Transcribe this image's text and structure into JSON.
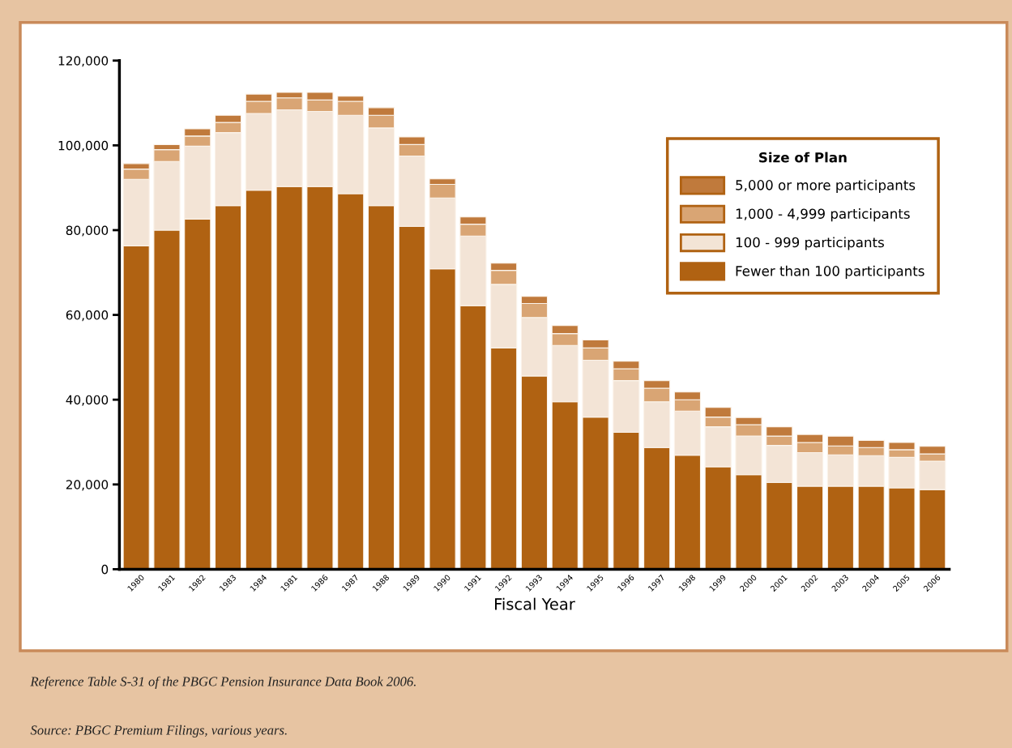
{
  "chart_data": {
    "type": "bar",
    "stacked": true,
    "xlabel": "Fiscal Year",
    "legend_title": "Size of Plan",
    "legend": "top right",
    "grid": false,
    "categories": [
      "1980",
      "1981",
      "1982",
      "1983",
      "1984",
      "1981",
      "1986",
      "1987",
      "1988",
      "1989",
      "1990",
      "1991",
      "1992",
      "1993",
      "1994",
      "1995",
      "1996",
      "1997",
      "1998",
      "1999",
      "2000",
      "2001",
      "2002",
      "2003",
      "2004",
      "2005",
      "2006"
    ],
    "series": [
      {
        "name": "Fewer than 100 participants",
        "color": "#b06212",
        "values": [
          76300,
          80000,
          82600,
          85800,
          89400,
          90300,
          90300,
          88600,
          85800,
          80900,
          70900,
          62200,
          52200,
          45600,
          39500,
          35900,
          32300,
          28700,
          26900,
          24200,
          22300,
          20500,
          19600,
          19600,
          19600,
          19200,
          18800
        ]
      },
      {
        "name": "100 - 999 participants",
        "color": "#f3e4d6",
        "values": [
          15700,
          16200,
          17200,
          17200,
          18100,
          18100,
          17700,
          18500,
          18300,
          16600,
          16700,
          16400,
          15000,
          13800,
          13300,
          13400,
          12200,
          10800,
          10400,
          9400,
          9100,
          8700,
          7900,
          7400,
          7200,
          7200,
          6700
        ]
      },
      {
        "name": "1,000 - 4,999 participants",
        "color": "#d9a574",
        "values": [
          2400,
          2800,
          2400,
          2400,
          2900,
          2800,
          2700,
          3300,
          3000,
          2700,
          3200,
          2800,
          3300,
          3300,
          2800,
          2900,
          2800,
          3200,
          2700,
          2300,
          2700,
          2200,
          2400,
          2100,
          1900,
          1800,
          1700
        ]
      },
      {
        "name": "5,000 or more participants",
        "color": "#c07a3c",
        "values": [
          1300,
          1200,
          1700,
          1700,
          1700,
          1300,
          1800,
          1200,
          1800,
          1800,
          1300,
          1700,
          1700,
          1700,
          1900,
          1900,
          1800,
          1800,
          1800,
          2300,
          1700,
          2200,
          1900,
          2300,
          1700,
          1700,
          1800
        ]
      }
    ],
    "ylim": [
      0,
      120000
    ],
    "yticks": [
      0,
      {
        "value": 20000,
        "label": "20,000"
      },
      {
        "value": 40000,
        "label": "40,000"
      },
      {
        "value": 60000,
        "label": "60,000"
      },
      {
        "value": 80000,
        "label": "80,000"
      },
      {
        "value": 100000,
        "label": "100,000"
      },
      {
        "value": 120000,
        "label": "120,000"
      }
    ],
    "annotations": [
      "Reference Table S-31 of the PBGC Pension Insurance Data Book 2006.",
      "Source: PBGC Premium Filings, various years."
    ]
  }
}
